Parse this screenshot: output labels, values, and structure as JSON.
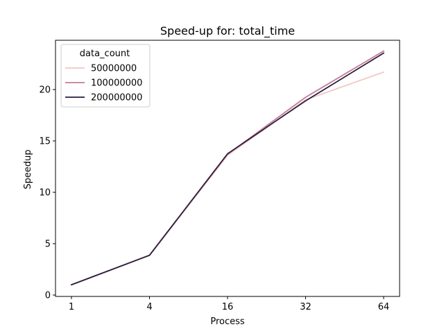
{
  "chart_data": {
    "type": "line",
    "title": "Speed-up for: total_time",
    "xlabel": "Process",
    "ylabel": "Speedup",
    "categories": [
      "1",
      "4",
      "16",
      "32",
      "64"
    ],
    "ylim": [
      0,
      24.2
    ],
    "yticks": [
      "0",
      "5",
      "10",
      "15",
      "20"
    ],
    "grid": false,
    "legend": {
      "title": "data_count",
      "placement": "top-left"
    },
    "series": [
      {
        "name": "50000000",
        "color": "#f1c7c4",
        "values": [
          1.0,
          3.85,
          13.6,
          19.0,
          21.7
        ]
      },
      {
        "name": "100000000",
        "color": "#c27b96",
        "values": [
          1.0,
          3.87,
          13.7,
          19.25,
          23.75
        ]
      },
      {
        "name": "200000000",
        "color": "#2c1e3d",
        "values": [
          1.0,
          3.87,
          13.75,
          18.9,
          23.55
        ]
      }
    ]
  }
}
